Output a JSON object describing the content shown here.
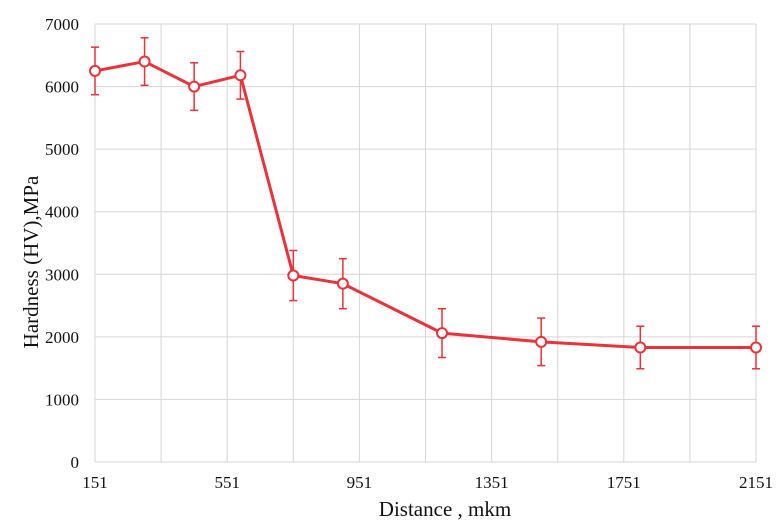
{
  "chart_data": {
    "type": "line",
    "title": "",
    "xlabel": "Distance , mkm",
    "ylabel": "Hardness (HV),MPa",
    "xlim": [
      151,
      2151
    ],
    "ylim": [
      0,
      7000
    ],
    "x_ticks": [
      "151",
      "551",
      "951",
      "1351",
      "1751",
      "2151"
    ],
    "y_ticks": [
      "0",
      "1000",
      "2000",
      "3000",
      "4000",
      "5000",
      "6000",
      "7000"
    ],
    "grid": true,
    "legend": "none",
    "series": [
      {
        "color": "#e8333a",
        "points": [
          {
            "x": 151,
            "y": 6250,
            "err": 380
          },
          {
            "x": 301,
            "y": 6400,
            "err": 380
          },
          {
            "x": 451,
            "y": 6000,
            "err": 380
          },
          {
            "x": 591,
            "y": 6180,
            "err": 380
          },
          {
            "x": 751,
            "y": 2980,
            "err": 400
          },
          {
            "x": 901,
            "y": 2850,
            "err": 400
          },
          {
            "x": 1201,
            "y": 2060,
            "err": 390
          },
          {
            "x": 1501,
            "y": 1920,
            "err": 380
          },
          {
            "x": 1801,
            "y": 1830,
            "err": 340
          },
          {
            "x": 2151,
            "y": 1830,
            "err": 340
          }
        ]
      }
    ]
  }
}
